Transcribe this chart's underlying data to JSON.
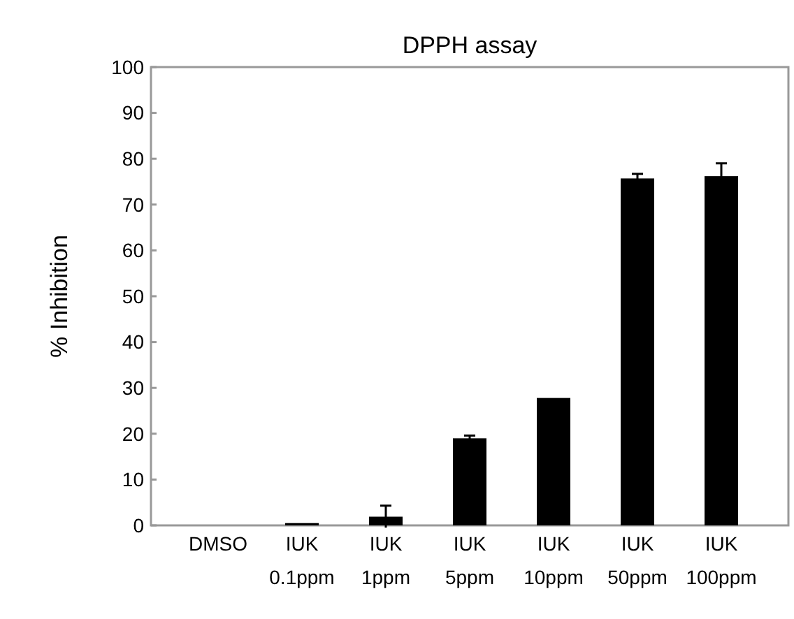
{
  "chart_data": {
    "type": "bar",
    "title": "DPPH assay",
    "ylabel": "% Inhibition",
    "categories": [
      "DMSO",
      "IUK\n0.1ppm",
      "IUK\n1ppm",
      "IUK\n5ppm",
      "IUK\n10ppm",
      "IUK\n50ppm",
      "IUK\n100ppm"
    ],
    "values": [
      0,
      0.5,
      1.9,
      19,
      27.8,
      75.7,
      76.2
    ],
    "errors": [
      null,
      null,
      2.4,
      0.6,
      null,
      1,
      2.8
    ],
    "color": "#000000",
    "ylim": [
      0,
      100
    ],
    "yticks": [
      0,
      10,
      20,
      30,
      40,
      50,
      60,
      70,
      80,
      90,
      100
    ],
    "grid": false
  }
}
